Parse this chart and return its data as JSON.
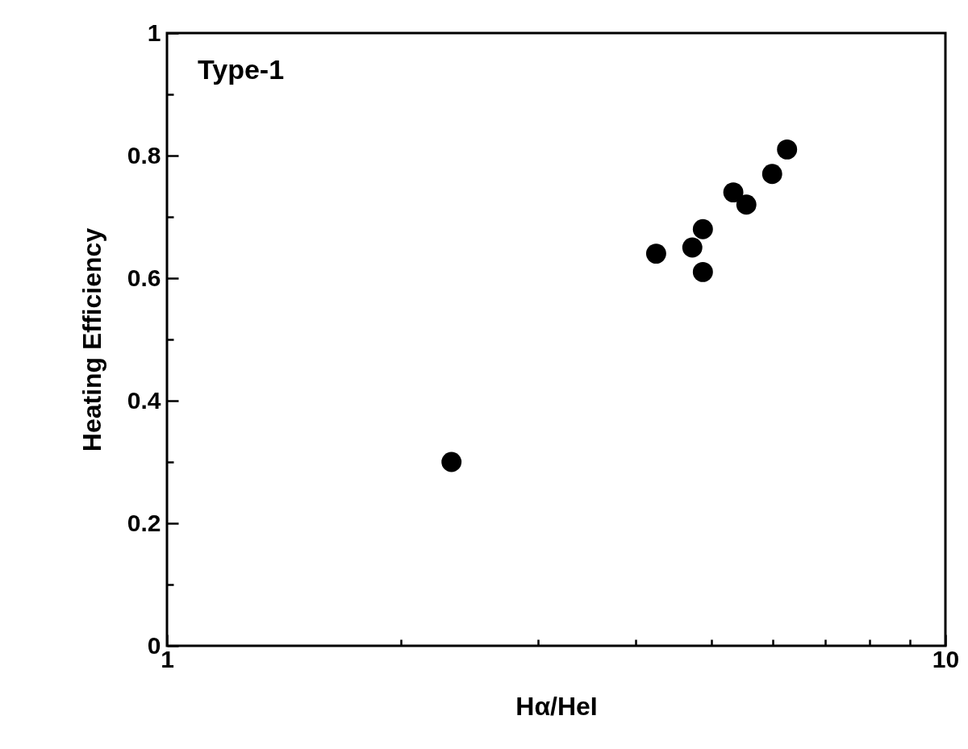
{
  "chart_data": {
    "type": "scatter",
    "xlabel": "Hα/HeI",
    "ylabel": "Heating Efficiency",
    "annotations": [
      "Type-1"
    ],
    "x": [
      2.32,
      4.25,
      4.73,
      4.88,
      4.88,
      5.34,
      5.55,
      5.99,
      6.26
    ],
    "values": [
      0.3,
      0.64,
      0.65,
      0.68,
      0.61,
      0.74,
      0.72,
      0.77,
      0.81
    ],
    "color": "#000000",
    "marker": "circle",
    "log": "x",
    "grid": false,
    "xlim": [
      1,
      10
    ],
    "xticks": [
      1,
      {
        "value": 2,
        "label": null
      },
      {
        "value": 3,
        "label": null
      },
      {
        "value": 4,
        "label": null
      },
      {
        "value": 5,
        "label": null
      },
      {
        "value": 6,
        "label": null
      },
      {
        "value": 7,
        "label": null
      },
      {
        "value": 8,
        "label": null
      },
      {
        "value": 9,
        "label": null
      },
      10
    ],
    "ylim": [
      0,
      1
    ],
    "yticks": [
      0,
      {
        "value": 0.1,
        "label": null
      },
      0.2,
      {
        "value": 0.3,
        "label": null
      },
      0.4,
      {
        "value": 0.5,
        "label": null
      },
      0.6,
      {
        "value": 0.7,
        "label": null
      },
      0.8,
      {
        "value": 0.9,
        "label": null
      },
      1
    ]
  }
}
